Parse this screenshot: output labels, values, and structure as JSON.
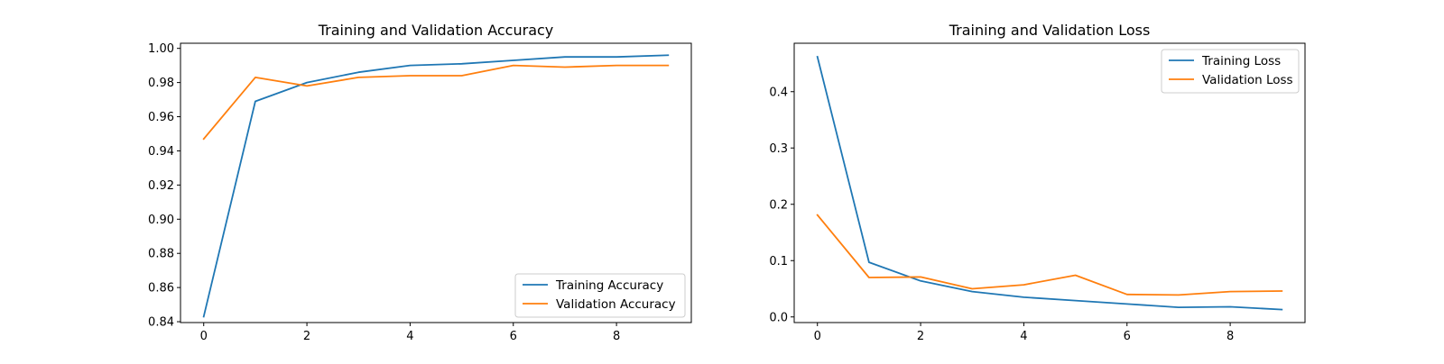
{
  "colors": {
    "training": "#1f77b4",
    "validation": "#ff7f0e"
  },
  "chart_data": [
    {
      "type": "line",
      "title": "Training and Validation Accuracy",
      "xlabel": "",
      "ylabel": "",
      "x": [
        0,
        1,
        2,
        3,
        4,
        5,
        6,
        7,
        8,
        9
      ],
      "xlim": [
        -0.45,
        9.45
      ],
      "ylim": [
        0.8395,
        1.003
      ],
      "xticks": [
        0,
        2,
        4,
        6,
        8
      ],
      "yticks": [
        0.84,
        0.86,
        0.88,
        0.9,
        0.92,
        0.94,
        0.96,
        0.98,
        1.0
      ],
      "ytick_labels": [
        "0.84",
        "0.86",
        "0.88",
        "0.90",
        "0.92",
        "0.94",
        "0.96",
        "0.98",
        "1.00"
      ],
      "legend_position": "lower right",
      "series": [
        {
          "name": "Training Accuracy",
          "color": "#1f77b4",
          "values": [
            0.843,
            0.969,
            0.98,
            0.986,
            0.99,
            0.991,
            0.993,
            0.995,
            0.995,
            0.996
          ]
        },
        {
          "name": "Validation Accuracy",
          "color": "#ff7f0e",
          "values": [
            0.947,
            0.983,
            0.978,
            0.983,
            0.984,
            0.984,
            0.99,
            0.989,
            0.99,
            0.99
          ]
        }
      ]
    },
    {
      "type": "line",
      "title": "Training and Validation Loss",
      "xlabel": "",
      "ylabel": "",
      "x": [
        0,
        1,
        2,
        3,
        4,
        5,
        6,
        7,
        8,
        9
      ],
      "xlim": [
        -0.45,
        9.45
      ],
      "ylim": [
        -0.01,
        0.486
      ],
      "xticks": [
        0,
        2,
        4,
        6,
        8
      ],
      "yticks": [
        0.0,
        0.1,
        0.2,
        0.3,
        0.4
      ],
      "ytick_labels": [
        "0.0",
        "0.1",
        "0.2",
        "0.3",
        "0.4"
      ],
      "legend_position": "upper right",
      "series": [
        {
          "name": "Training Loss",
          "color": "#1f77b4",
          "values": [
            0.462,
            0.097,
            0.064,
            0.045,
            0.035,
            0.029,
            0.023,
            0.017,
            0.018,
            0.013
          ]
        },
        {
          "name": "Validation Loss",
          "color": "#ff7f0e",
          "values": [
            0.181,
            0.07,
            0.071,
            0.05,
            0.057,
            0.074,
            0.04,
            0.039,
            0.045,
            0.046
          ]
        }
      ]
    }
  ]
}
